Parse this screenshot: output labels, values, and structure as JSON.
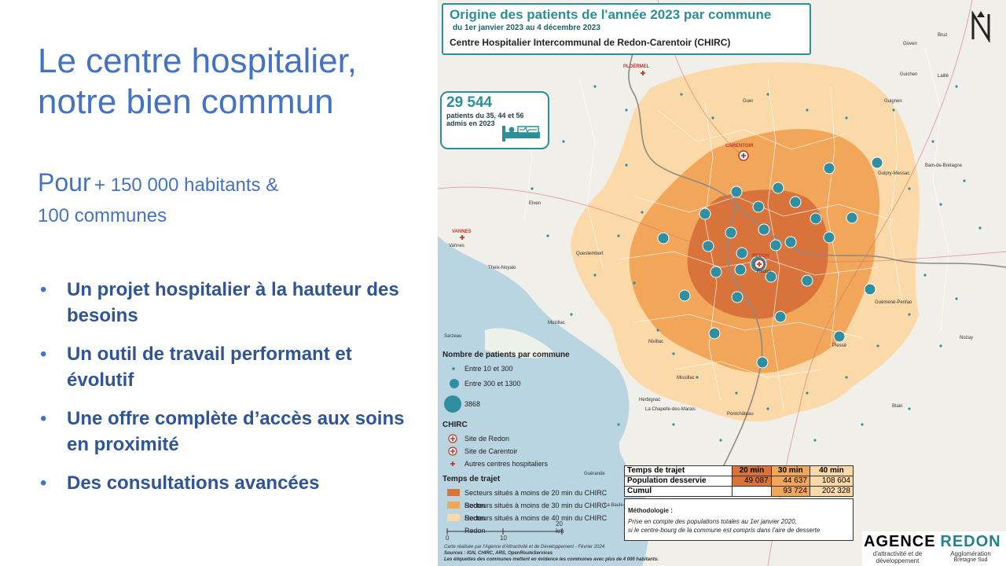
{
  "slide": {
    "title": "Le centre hospitalier, notre bien commun",
    "subtitle_lead": "Pour",
    "subtitle_rest_1": "+ 150 000 habitants &",
    "subtitle_rest_2": "100 communes",
    "bullets": [
      "Un projet hospitalier à la hauteur des besoins",
      "Un outil de travail performant et évolutif",
      "Une offre complète d’accès  aux soins en proximité",
      "Des consultations avancées"
    ]
  },
  "map": {
    "title": "Origine des patients de l'année 2023 par commune",
    "date_range": "du 1er janvier 2023 au 4 décembre 2023",
    "hospital": "Centre Hospitalier Intercommunal de Redon-Carentoir (CHIRC)",
    "patients_count": "29 544",
    "patients_desc": "patients du 35, 44 et 56 admis en 2023",
    "legend": {
      "patients_title": "Nombre de patients par commune",
      "patients_classes": [
        "Entre 10 et 300",
        "Entre 300 et 1300",
        "3868"
      ],
      "chirc_title": "CHIRC",
      "chirc_items": [
        "Site de Redon",
        "Site de Carentoir",
        "Autres centres hospitaliers"
      ],
      "travel_title": "Temps de trajet",
      "travel_items": [
        "Secteurs situés à moins de 20 min du CHIRC Redon",
        "Secteurs situés à moins de 30 min du CHIRC Redon",
        "Secteurs situés à moins de 40 min du CHIRC Redon"
      ]
    },
    "table": {
      "header": [
        "Temps de trajet",
        "20 min",
        "30 min",
        "40 min"
      ],
      "population_label": "Population desservie",
      "population": [
        "49 087",
        "44 637",
        "108 604"
      ],
      "cumul_label": "Cumul",
      "cumul": [
        "",
        "93 724",
        "202 328"
      ]
    },
    "methodology": {
      "title": "Méthodologie :",
      "line1": "Prise en compte des populations totales au 1er janvier 2020,",
      "line2": "si le centre-bourg de la commune est compris dans l'aire de desserte"
    },
    "scale": [
      "0",
      "10",
      "20 km"
    ],
    "credits": {
      "line1": "Carte réalisée par l'Agence d'Attractivité et de Développement - Février 2024",
      "line2": "Sources : IGN, CHIRC, ARS, OpenRouteServices",
      "line3": "Les étiquettes des communes mettent en évidence les communes avec plus de 4 000 habitants."
    },
    "places": [
      {
        "name": "PLOËRMEL",
        "hospital": true
      },
      {
        "name": "CARENTOIR",
        "hospital": true
      },
      {
        "name": "VANNES",
        "hospital": true
      },
      {
        "name": "REDON",
        "hospital": true
      },
      {
        "name": "Bruz",
        "hospital": false
      },
      {
        "name": "Goven",
        "hospital": false
      },
      {
        "name": "Guichen",
        "hospital": false
      },
      {
        "name": "Laillé",
        "hospital": false
      },
      {
        "name": "Guer",
        "hospital": false
      },
      {
        "name": "Guignen",
        "hospital": false
      },
      {
        "name": "Guipry-Messac",
        "hospital": false
      },
      {
        "name": "Bain-de-Bretagne",
        "hospital": false
      },
      {
        "name": "Elven",
        "hospital": false
      },
      {
        "name": "Vannes",
        "hospital": false
      },
      {
        "name": "Questembert",
        "hospital": false
      },
      {
        "name": "Theix-Noyalo",
        "hospital": false
      },
      {
        "name": "Redon",
        "hospital": false
      },
      {
        "name": "Muzillac",
        "hospital": false
      },
      {
        "name": "Nivillac",
        "hospital": false
      },
      {
        "name": "Sarzeau",
        "hospital": false
      },
      {
        "name": "Guémené-Penfao",
        "hospital": false
      },
      {
        "name": "Plessé",
        "hospital": false
      },
      {
        "name": "Nozay",
        "hospital": false
      },
      {
        "name": "Missillac",
        "hospital": false
      },
      {
        "name": "Herbignac",
        "hospital": false
      },
      {
        "name": "La Chapelle-des-Marais",
        "hospital": false
      },
      {
        "name": "Pontchâteau",
        "hospital": false
      },
      {
        "name": "Blain",
        "hospital": false
      },
      {
        "name": "Guérande",
        "hospital": false
      },
      {
        "name": "La Baule-Escoublac",
        "hospital": false
      }
    ]
  },
  "logos": {
    "agence": "AGENCE",
    "agence_sub": "d'attractivité et de développement",
    "redon": "REDON",
    "redon_sub": "Agglomération",
    "redon_sub2": "Bretagne Sud"
  },
  "colors": {
    "title_blue": "#4472c4",
    "bullet_blue": "#2f5597",
    "teal": "#2a8f98",
    "zone_20": "#d8743b",
    "zone_30": "#f2a65a",
    "zone_40": "#fcd9a8",
    "sea": "#b9d5e2"
  }
}
